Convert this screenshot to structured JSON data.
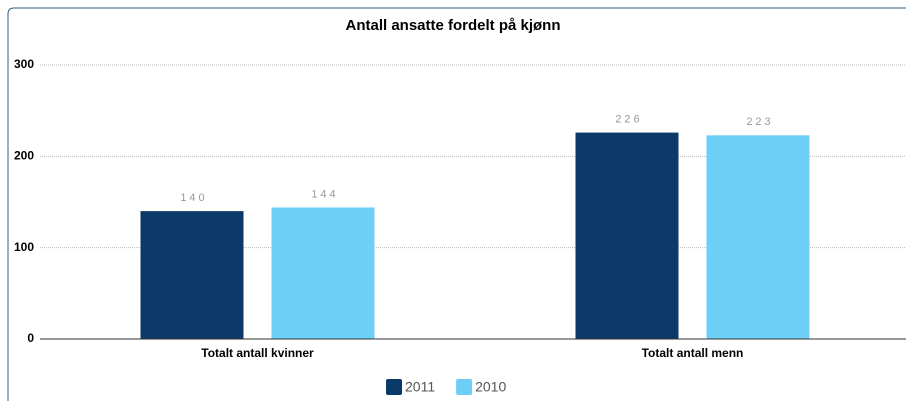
{
  "chart_data": {
    "type": "bar",
    "title": "Antall ansatte fordelt på kjønn",
    "categories": [
      "Totalt antall kvinner",
      "Totalt antall menn"
    ],
    "series": [
      {
        "name": "2011",
        "color": "#0b3a68",
        "values": [
          140,
          226
        ]
      },
      {
        "name": "2010",
        "color": "#6dcff6",
        "values": [
          144,
          223
        ]
      }
    ],
    "ylim": [
      0,
      300
    ],
    "yticks": [
      0,
      100,
      200,
      300
    ],
    "grid": true,
    "legend": "bottom"
  }
}
